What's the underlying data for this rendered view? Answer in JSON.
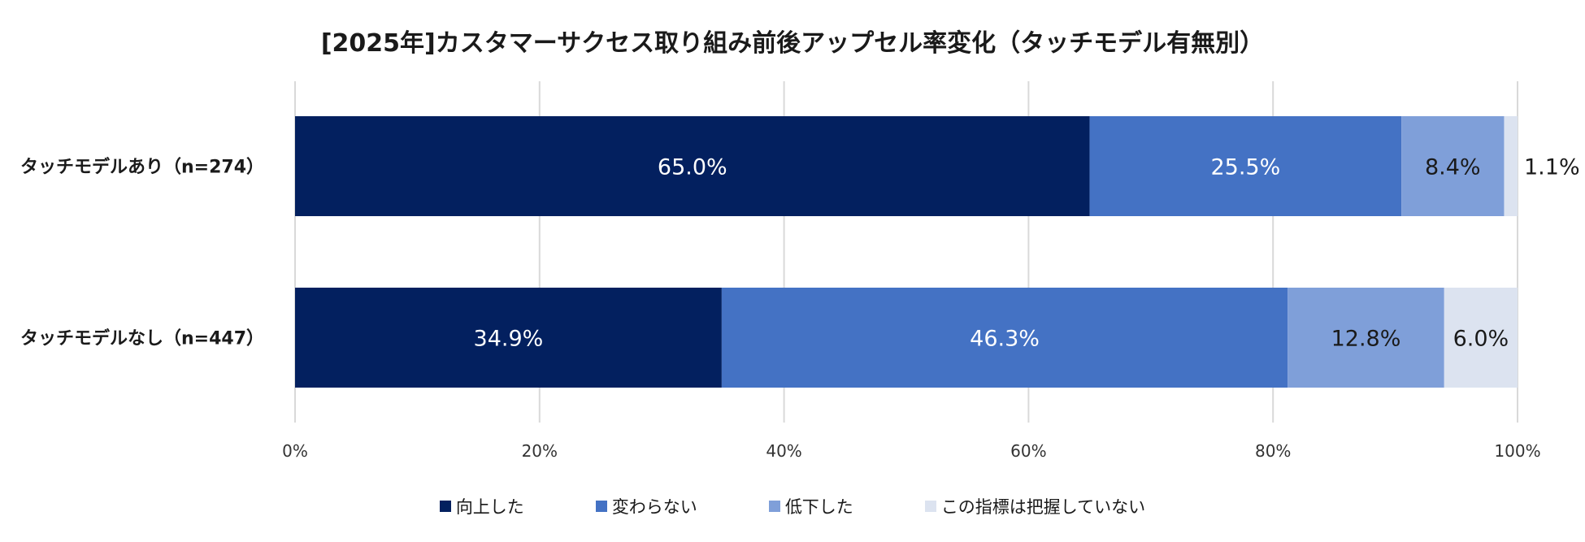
{
  "chart_data": {
    "type": "bar",
    "orientation": "horizontal",
    "stacked": true,
    "title": "[2025年]カスタマーサクセス取り組み前後アップセル率変化（タッチモデル有無別）",
    "categories": [
      "タッチモデルあり（n=274）",
      "タッチモデルなし（n=447）"
    ],
    "series": [
      {
        "name": "向上した",
        "values": [
          65.0,
          34.9
        ],
        "labels": [
          "65.0%",
          "34.9%"
        ],
        "color": "#03205f",
        "label_color": "#ffffff"
      },
      {
        "name": "変わらない",
        "values": [
          25.5,
          46.3
        ],
        "labels": [
          "25.5%",
          "46.3%"
        ],
        "color": "#4472c4",
        "label_color": "#ffffff"
      },
      {
        "name": "低下した",
        "values": [
          8.4,
          12.8
        ],
        "labels": [
          "8.4%",
          "12.8%"
        ],
        "color": "#7f9fd9",
        "label_color": "#1a1a1a"
      },
      {
        "name": "この指標は把握していない",
        "values": [
          1.1,
          6.0
        ],
        "labels": [
          "1.1%",
          "6.0%"
        ],
        "color": "#dce3f0",
        "label_color": "#1a1a1a"
      }
    ],
    "xlim": [
      0,
      100
    ],
    "xticks": [
      "0%",
      "20%",
      "40%",
      "60%",
      "80%",
      "100%"
    ],
    "grid": true,
    "legend": "bottom"
  }
}
